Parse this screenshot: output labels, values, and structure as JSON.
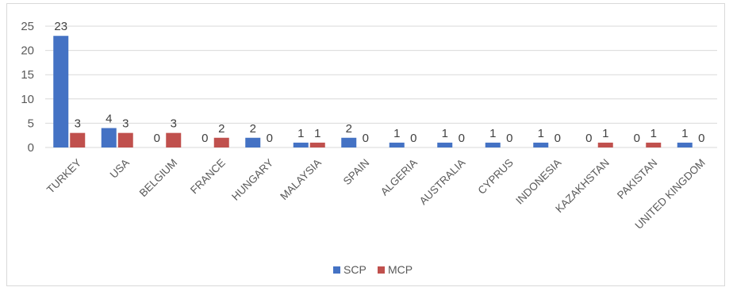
{
  "chart_data": {
    "type": "bar",
    "categories": [
      "TURKEY",
      "USA",
      "BELGIUM",
      "FRANCE",
      "HUNGARY",
      "MALAYSIA",
      "SPAIN",
      "ALGERIA",
      "AUSTRALIA",
      "CYPRUS",
      "INDONESIA",
      "KAZAKHSTAN",
      "PAKISTAN",
      "UNITED KINGDOM"
    ],
    "series": [
      {
        "name": "SCP",
        "color": "#4472C4",
        "values": [
          23,
          4,
          0,
          0,
          2,
          1,
          2,
          1,
          1,
          1,
          1,
          0,
          0,
          1
        ]
      },
      {
        "name": "MCP",
        "color": "#C0504D",
        "values": [
          3,
          3,
          3,
          2,
          0,
          1,
          0,
          0,
          0,
          0,
          0,
          1,
          1,
          0
        ]
      }
    ],
    "yticks": [
      "0",
      "5",
      "10",
      "15",
      "20",
      "25"
    ],
    "ylim": [
      0,
      25
    ],
    "grid": true,
    "legend_position": "bottom-center",
    "title": "",
    "xlabel": "",
    "ylabel": ""
  }
}
